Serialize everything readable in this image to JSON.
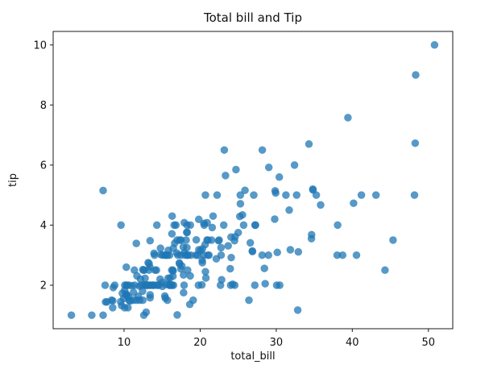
{
  "chart_data": {
    "type": "scatter",
    "title": "Total bill and Tip",
    "xlabel": "total_bill",
    "ylabel": "tip",
    "xlim": [
      0.68,
      53.2
    ],
    "ylim": [
      0.55,
      10.45
    ],
    "xticks": [
      10,
      20,
      30,
      40,
      50
    ],
    "yticks": [
      2,
      4,
      6,
      8,
      10
    ],
    "grid": false,
    "legend": "none",
    "marker_color": "#1f77b4",
    "marker_opacity": 0.75,
    "points": [
      [
        16.99,
        1.01
      ],
      [
        10.34,
        1.66
      ],
      [
        21.01,
        3.5
      ],
      [
        23.68,
        3.31
      ],
      [
        24.59,
        3.61
      ],
      [
        25.29,
        4.71
      ],
      [
        8.77,
        2.0
      ],
      [
        26.88,
        3.12
      ],
      [
        15.04,
        1.96
      ],
      [
        14.78,
        3.23
      ],
      [
        10.27,
        1.71
      ],
      [
        35.26,
        5.0
      ],
      [
        15.42,
        1.57
      ],
      [
        18.43,
        3.0
      ],
      [
        14.83,
        3.02
      ],
      [
        21.58,
        3.92
      ],
      [
        10.33,
        1.67
      ],
      [
        16.29,
        3.71
      ],
      [
        16.97,
        3.5
      ],
      [
        20.65,
        3.35
      ],
      [
        17.92,
        4.08
      ],
      [
        20.29,
        2.75
      ],
      [
        15.77,
        2.23
      ],
      [
        39.42,
        7.58
      ],
      [
        19.82,
        3.18
      ],
      [
        17.81,
        2.34
      ],
      [
        13.37,
        2.0
      ],
      [
        12.69,
        2.0
      ],
      [
        21.7,
        4.3
      ],
      [
        19.65,
        3.0
      ],
      [
        9.55,
        1.45
      ],
      [
        18.35,
        2.5
      ],
      [
        15.06,
        3.0
      ],
      [
        20.69,
        2.45
      ],
      [
        17.78,
        3.27
      ],
      [
        24.06,
        3.6
      ],
      [
        16.31,
        2.0
      ],
      [
        16.93,
        3.07
      ],
      [
        18.69,
        2.31
      ],
      [
        31.27,
        5.0
      ],
      [
        16.04,
        2.24
      ],
      [
        17.46,
        2.54
      ],
      [
        13.94,
        3.06
      ],
      [
        9.68,
        1.32
      ],
      [
        30.4,
        5.6
      ],
      [
        18.29,
        3.0
      ],
      [
        22.23,
        5.0
      ],
      [
        32.4,
        6.0
      ],
      [
        28.55,
        2.05
      ],
      [
        18.04,
        3.0
      ],
      [
        12.54,
        2.5
      ],
      [
        10.29,
        2.6
      ],
      [
        34.81,
        5.2
      ],
      [
        9.94,
        1.56
      ],
      [
        25.56,
        4.34
      ],
      [
        19.49,
        3.51
      ],
      [
        38.01,
        3.0
      ],
      [
        26.41,
        1.5
      ],
      [
        11.24,
        1.76
      ],
      [
        48.27,
        6.73
      ],
      [
        20.29,
        3.21
      ],
      [
        13.81,
        2.0
      ],
      [
        11.02,
        1.98
      ],
      [
        18.29,
        3.76
      ],
      [
        17.59,
        2.64
      ],
      [
        20.08,
        3.15
      ],
      [
        16.45,
        2.47
      ],
      [
        3.07,
        1.0
      ],
      [
        20.23,
        2.01
      ],
      [
        15.01,
        2.09
      ],
      [
        12.02,
        1.97
      ],
      [
        17.07,
        3.0
      ],
      [
        26.86,
        3.14
      ],
      [
        25.28,
        5.0
      ],
      [
        14.73,
        2.2
      ],
      [
        10.51,
        1.25
      ],
      [
        17.92,
        3.08
      ],
      [
        27.2,
        4.0
      ],
      [
        22.76,
        3.0
      ],
      [
        17.29,
        2.71
      ],
      [
        19.44,
        3.0
      ],
      [
        16.66,
        3.4
      ],
      [
        10.07,
        1.83
      ],
      [
        32.68,
        5.0
      ],
      [
        15.98,
        2.03
      ],
      [
        34.83,
        5.17
      ],
      [
        13.03,
        2.0
      ],
      [
        18.28,
        4.0
      ],
      [
        24.71,
        5.85
      ],
      [
        21.16,
        3.0
      ],
      [
        28.97,
        3.0
      ],
      [
        22.49,
        3.5
      ],
      [
        5.75,
        1.0
      ],
      [
        16.32,
        4.3
      ],
      [
        22.75,
        3.25
      ],
      [
        40.17,
        4.73
      ],
      [
        27.28,
        4.0
      ],
      [
        12.03,
        1.5
      ],
      [
        21.01,
        3.0
      ],
      [
        12.46,
        1.5
      ],
      [
        11.35,
        2.5
      ],
      [
        15.38,
        3.0
      ],
      [
        44.3,
        2.5
      ],
      [
        22.42,
        3.48
      ],
      [
        20.92,
        4.08
      ],
      [
        15.36,
        1.64
      ],
      [
        20.49,
        4.06
      ],
      [
        25.21,
        4.29
      ],
      [
        18.24,
        3.76
      ],
      [
        14.31,
        4.0
      ],
      [
        14.0,
        3.0
      ],
      [
        7.25,
        1.0
      ],
      [
        38.07,
        4.0
      ],
      [
        23.95,
        2.55
      ],
      [
        25.71,
        4.0
      ],
      [
        17.31,
        3.5
      ],
      [
        29.93,
        5.07
      ],
      [
        10.65,
        1.5
      ],
      [
        12.43,
        1.8
      ],
      [
        24.08,
        2.92
      ],
      [
        11.69,
        2.31
      ],
      [
        13.42,
        1.68
      ],
      [
        14.26,
        2.5
      ],
      [
        15.95,
        2.0
      ],
      [
        12.48,
        2.52
      ],
      [
        29.8,
        4.2
      ],
      [
        8.52,
        1.48
      ],
      [
        14.52,
        2.0
      ],
      [
        11.38,
        2.0
      ],
      [
        22.82,
        2.18
      ],
      [
        19.08,
        1.5
      ],
      [
        20.27,
        2.83
      ],
      [
        11.17,
        1.5
      ],
      [
        12.26,
        2.0
      ],
      [
        18.26,
        3.25
      ],
      [
        8.51,
        1.25
      ],
      [
        10.33,
        2.0
      ],
      [
        14.15,
        2.0
      ],
      [
        16.0,
        2.0
      ],
      [
        13.16,
        2.75
      ],
      [
        17.47,
        3.5
      ],
      [
        34.3,
        6.7
      ],
      [
        41.19,
        5.0
      ],
      [
        27.05,
        5.0
      ],
      [
        16.43,
        2.3
      ],
      [
        8.35,
        1.5
      ],
      [
        18.64,
        1.36
      ],
      [
        11.87,
        1.63
      ],
      [
        9.78,
        1.73
      ],
      [
        7.51,
        2.0
      ],
      [
        14.07,
        2.5
      ],
      [
        13.13,
        2.0
      ],
      [
        17.26,
        2.74
      ],
      [
        24.55,
        2.0
      ],
      [
        19.77,
        2.0
      ],
      [
        29.85,
        5.14
      ],
      [
        48.17,
        5.0
      ],
      [
        25.0,
        3.75
      ],
      [
        13.39,
        2.61
      ],
      [
        16.49,
        2.0
      ],
      [
        21.5,
        3.5
      ],
      [
        12.66,
        2.5
      ],
      [
        16.21,
        2.0
      ],
      [
        13.81,
        2.0
      ],
      [
        17.51,
        3.0
      ],
      [
        24.52,
        3.48
      ],
      [
        20.76,
        2.24
      ],
      [
        31.71,
        4.5
      ],
      [
        10.59,
        1.61
      ],
      [
        10.63,
        2.0
      ],
      [
        50.81,
        10.0
      ],
      [
        15.81,
        3.16
      ],
      [
        7.25,
        5.15
      ],
      [
        31.85,
        3.18
      ],
      [
        16.82,
        4.0
      ],
      [
        32.9,
        3.11
      ],
      [
        17.89,
        2.0
      ],
      [
        14.48,
        2.0
      ],
      [
        9.6,
        4.0
      ],
      [
        34.63,
        3.55
      ],
      [
        34.65,
        3.68
      ],
      [
        23.33,
        5.65
      ],
      [
        45.35,
        3.5
      ],
      [
        23.17,
        6.5
      ],
      [
        40.55,
        3.0
      ],
      [
        20.69,
        5.0
      ],
      [
        20.9,
        3.5
      ],
      [
        30.46,
        2.0
      ],
      [
        18.15,
        3.5
      ],
      [
        23.1,
        4.0
      ],
      [
        15.69,
        1.5
      ],
      [
        19.81,
        4.19
      ],
      [
        28.44,
        2.56
      ],
      [
        15.48,
        2.02
      ],
      [
        16.58,
        4.0
      ],
      [
        7.56,
        1.44
      ],
      [
        10.34,
        2.0
      ],
      [
        43.11,
        5.0
      ],
      [
        13.0,
        2.0
      ],
      [
        13.51,
        2.0
      ],
      [
        18.71,
        4.0
      ],
      [
        12.74,
        2.01
      ],
      [
        13.0,
        2.0
      ],
      [
        16.4,
        2.5
      ],
      [
        20.53,
        4.0
      ],
      [
        16.47,
        3.23
      ],
      [
        26.59,
        3.41
      ],
      [
        38.73,
        3.0
      ],
      [
        24.27,
        2.03
      ],
      [
        12.76,
        2.23
      ],
      [
        30.06,
        2.0
      ],
      [
        25.89,
        5.16
      ],
      [
        48.33,
        9.0
      ],
      [
        13.27,
        2.5
      ],
      [
        28.17,
        6.5
      ],
      [
        12.9,
        1.1
      ],
      [
        28.15,
        3.0
      ],
      [
        11.59,
        1.5
      ],
      [
        7.74,
        1.44
      ],
      [
        30.14,
        3.09
      ],
      [
        12.16,
        2.2
      ],
      [
        13.42,
        3.48
      ],
      [
        8.58,
        1.92
      ],
      [
        15.98,
        3.0
      ],
      [
        13.42,
        1.58
      ],
      [
        16.27,
        2.5
      ],
      [
        10.09,
        2.0
      ],
      [
        20.45,
        3.0
      ],
      [
        13.28,
        2.72
      ],
      [
        22.12,
        2.88
      ],
      [
        24.01,
        2.0
      ],
      [
        15.69,
        3.0
      ],
      [
        11.61,
        3.39
      ],
      [
        10.77,
        1.47
      ],
      [
        15.53,
        3.0
      ],
      [
        10.07,
        1.25
      ],
      [
        12.6,
        1.0
      ],
      [
        32.83,
        1.17
      ],
      [
        35.83,
        4.67
      ],
      [
        29.03,
        5.92
      ],
      [
        27.18,
        2.0
      ],
      [
        22.67,
        2.0
      ],
      [
        17.82,
        1.75
      ],
      [
        18.78,
        3.0
      ]
    ]
  }
}
